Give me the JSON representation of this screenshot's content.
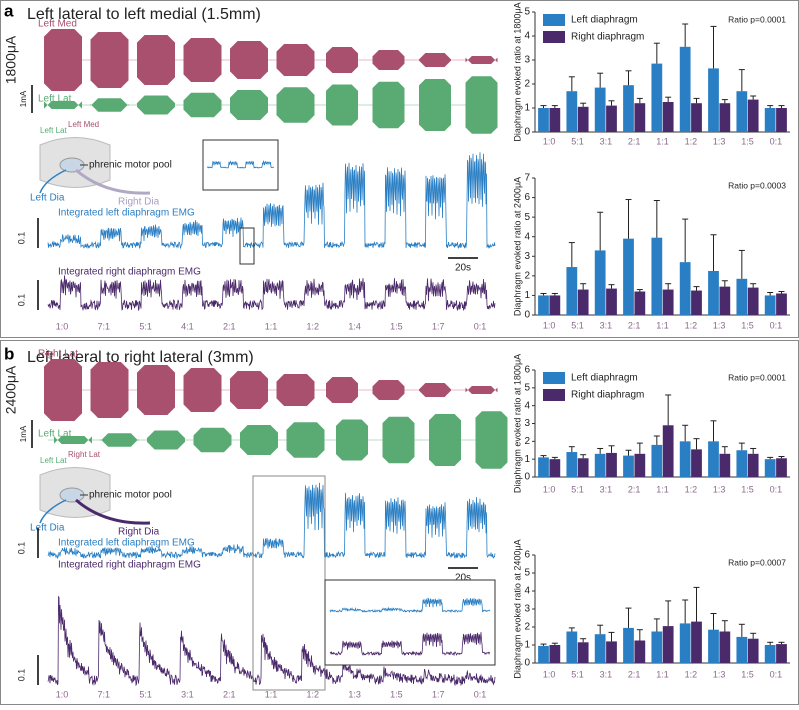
{
  "panels": [
    {
      "label": "a",
      "title": "Left lateral to left medial (1.5mm)",
      "top_site": "Left Med",
      "bottom_site": "Left Lat",
      "scale_current": "1mA",
      "current": "1800μA",
      "schematic_sites": [
        "Left Lat",
        "Left Med"
      ],
      "pool": "phrenic motor pool",
      "left_dia": "Left Dia",
      "right_dia": "Right Dia",
      "left_emg": "Integrated left diaphragm EMG",
      "right_emg": "Integrated right diaphragm EMG",
      "scale_amp": "0.1",
      "time_scale": "20s",
      "ratios": [
        "1:0",
        "7:1",
        "5:1",
        "4:1",
        "2:1",
        "1:1",
        "1:2",
        "1:4",
        "1:5",
        "1:7",
        "0:1"
      ]
    },
    {
      "label": "b",
      "title": "Left lateral to right lateral (3mm)",
      "top_site": "Right Lat",
      "bottom_site": "Left Lat",
      "scale_current": "1mA",
      "current": "2400μA",
      "schematic_sites": [
        "Left Lat",
        "Right Lat"
      ],
      "pool": "phrenic motor pool",
      "left_dia": "Left Dia",
      "right_dia": "Right Dia",
      "left_emg": "Integrated left diaphragm EMG",
      "right_emg": "Integrated right diaphragm EMG",
      "scale_amp": "0.1",
      "time_scale": "20s",
      "ratios": [
        "1:0",
        "7:1",
        "5:1",
        "3:1",
        "2:1",
        "1:1",
        "1:2",
        "1:3",
        "1:5",
        "1:7",
        "0:1"
      ]
    }
  ],
  "chart_data": [
    {
      "type": "bar",
      "ylabel": "Diaphragm evoked ratio at 1800μA",
      "annotation": "Ratio p=0.0001",
      "legend": "upper left",
      "categories": [
        "1:0",
        "5:1",
        "3:1",
        "2:1",
        "1:1",
        "1:2",
        "1:3",
        "1:5",
        "0:1"
      ],
      "series": [
        {
          "name": "Left diaphragm",
          "color": "#2a7fc4",
          "values": [
            1.0,
            1.7,
            1.85,
            1.95,
            2.85,
            3.55,
            2.65,
            1.7,
            1.0
          ],
          "errors": [
            0.1,
            0.6,
            0.6,
            0.6,
            0.85,
            0.95,
            1.75,
            0.9,
            0.1
          ]
        },
        {
          "name": "Right diaphragm",
          "color": "#4b2a6b",
          "values": [
            1.0,
            1.05,
            1.1,
            1.2,
            1.25,
            1.2,
            1.2,
            1.35,
            1.0
          ],
          "errors": [
            0.1,
            0.15,
            0.2,
            0.2,
            0.2,
            0.2,
            0.15,
            0.15,
            0.1
          ]
        }
      ],
      "ylim": [
        0,
        5
      ],
      "yticks": [
        0,
        1,
        2,
        3,
        4,
        5
      ]
    },
    {
      "type": "bar",
      "ylabel": "Diaphragm evoked ratio at 2400μA",
      "annotation": "Ratio p=0.0003",
      "categories": [
        "1:0",
        "5:1",
        "3:1",
        "2:1",
        "1:1",
        "1:2",
        "1:3",
        "1:5",
        "0:1"
      ],
      "series": [
        {
          "color": "#2a7fc4",
          "values": [
            1.0,
            2.45,
            3.3,
            3.9,
            3.95,
            2.7,
            2.25,
            1.85,
            1.0
          ],
          "errors": [
            0.1,
            1.25,
            1.95,
            2.0,
            1.9,
            2.2,
            1.85,
            1.45,
            0.15
          ]
        },
        {
          "color": "#4b2a6b",
          "values": [
            1.0,
            1.3,
            1.35,
            1.2,
            1.3,
            1.25,
            1.45,
            1.4,
            1.1
          ],
          "errors": [
            0.1,
            0.3,
            0.2,
            0.1,
            0.3,
            0.2,
            0.3,
            0.2,
            0.1
          ]
        }
      ],
      "ylim": [
        0,
        7
      ],
      "yticks": [
        0,
        1,
        2,
        3,
        4,
        5,
        6,
        7
      ]
    },
    {
      "type": "bar",
      "ylabel": "Diaphragm evoked ratio at 1800μA",
      "annotation": "Ratio p=0.0001",
      "legend": "upper left",
      "categories": [
        "1:0",
        "5:1",
        "3:1",
        "2:1",
        "1:1",
        "1:2",
        "1:3",
        "1:5",
        "0:1"
      ],
      "series": [
        {
          "name": "Left diaphragm",
          "color": "#2a7fc4",
          "values": [
            1.1,
            1.4,
            1.3,
            1.2,
            1.8,
            2.0,
            2.0,
            1.5,
            1.0
          ],
          "errors": [
            0.1,
            0.3,
            0.3,
            0.3,
            0.5,
            0.9,
            1.15,
            0.4,
            0.1
          ]
        },
        {
          "name": "Right diaphragm",
          "color": "#4b2a6b",
          "values": [
            1.0,
            1.05,
            1.35,
            1.3,
            2.9,
            1.55,
            1.3,
            1.3,
            1.05
          ],
          "errors": [
            0.1,
            0.2,
            0.4,
            0.6,
            1.7,
            0.6,
            0.4,
            0.3,
            0.1
          ]
        }
      ],
      "ylim": [
        0,
        6
      ],
      "yticks": [
        0,
        1,
        2,
        3,
        4,
        5,
        6
      ]
    },
    {
      "type": "bar",
      "ylabel": "Diaphragm evoked ratio at 2400μA",
      "annotation": "Ratio p=0.0007",
      "categories": [
        "1:0",
        "5:1",
        "3:1",
        "2:1",
        "1:1",
        "1:2",
        "1:3",
        "1:5",
        "0:1"
      ],
      "series": [
        {
          "color": "#2a7fc4",
          "values": [
            0.95,
            1.75,
            1.6,
            1.95,
            1.75,
            2.2,
            1.85,
            1.45,
            1.0
          ],
          "errors": [
            0.1,
            0.2,
            0.5,
            1.1,
            0.7,
            1.3,
            0.9,
            0.7,
            0.15
          ]
        },
        {
          "color": "#4b2a6b",
          "values": [
            1.0,
            1.15,
            1.2,
            1.25,
            2.05,
            2.3,
            1.75,
            1.35,
            1.05
          ],
          "errors": [
            0.1,
            0.2,
            0.5,
            0.6,
            1.4,
            1.9,
            0.6,
            0.3,
            0.1
          ]
        }
      ],
      "ylim": [
        0,
        6
      ],
      "yticks": [
        0,
        1,
        2,
        3,
        4,
        5,
        6
      ]
    }
  ]
}
